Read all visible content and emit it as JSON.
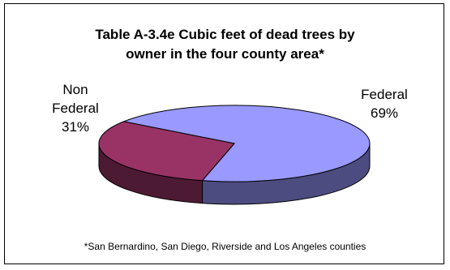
{
  "chart_data": {
    "type": "pie",
    "title_lines": [
      "Table A-3.4e Cubic feet of dead trees by",
      "owner in the four county area*"
    ],
    "slices": [
      {
        "label_lines": [
          "Federal"
        ],
        "percent_label": "69%",
        "value": 69,
        "color": "#9999ff",
        "side_color": "#4c4c80"
      },
      {
        "label_lines": [
          "Non",
          "Federal"
        ],
        "percent_label": "31%",
        "value": 31,
        "color": "#993366",
        "side_color": "#4d1a33"
      }
    ],
    "footnote": "*San Bernardino, San Diego, Riverside and Los Angeles counties",
    "style": "3d",
    "legend": "none"
  }
}
